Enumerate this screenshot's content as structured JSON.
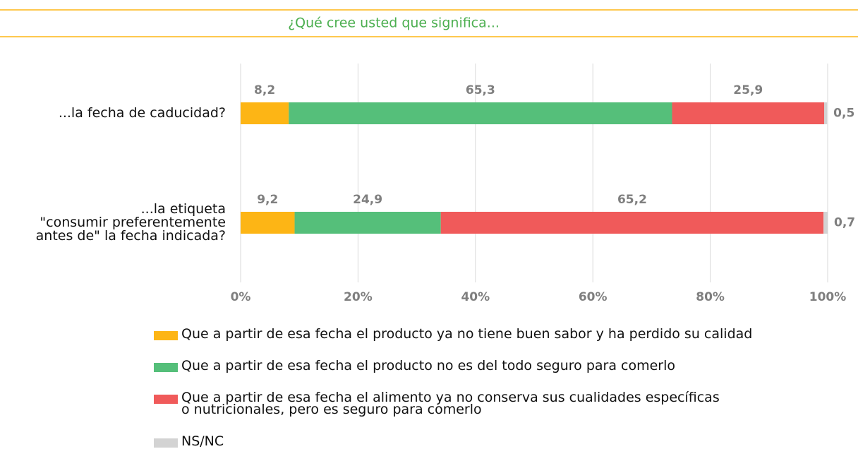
{
  "chart_data": {
    "type": "stacked-bar-horizontal",
    "title": "¿Qué cree usted que significa...",
    "categories": [
      "...la fecha de caducidad?",
      "...la etiqueta\n\"consumir preferentemente\nantes de\" la fecha indicada?"
    ],
    "series": [
      {
        "name": "Que a partir de esa fecha el producto ya no tiene buen sabor y ha perdido su calidad",
        "color": "#fdb515",
        "values": [
          8.2,
          9.2
        ],
        "value_labels": [
          "8,2",
          "9,2"
        ]
      },
      {
        "name": "Que a partir de esa fecha el producto no es del  todo seguro para comerlo",
        "color": "#55bf7a",
        "values": [
          65.3,
          24.9
        ],
        "value_labels": [
          "65,3",
          "24,9"
        ]
      },
      {
        "name": "Que a partir de esa fecha el alimento ya no conserva sus cualidades específicas\no nutricionales, pero es seguro para comerlo",
        "color": "#f05a5a",
        "values": [
          25.9,
          65.2
        ],
        "value_labels": [
          "25,9",
          "65,2"
        ]
      },
      {
        "name": "NS/NC",
        "color": "#d3d3d3",
        "values": [
          0.5,
          0.7
        ],
        "value_labels": [
          "0,5",
          "0,7"
        ]
      }
    ],
    "xlim": [
      0,
      100
    ],
    "xticks": [
      {
        "value": 0,
        "label": "0%"
      },
      {
        "value": 20,
        "label": "20%"
      },
      {
        "value": 40,
        "label": "40%"
      },
      {
        "value": 60,
        "label": "60%"
      },
      {
        "value": 80,
        "label": "80%"
      },
      {
        "value": 100,
        "label": "100%"
      }
    ],
    "grid": true
  }
}
